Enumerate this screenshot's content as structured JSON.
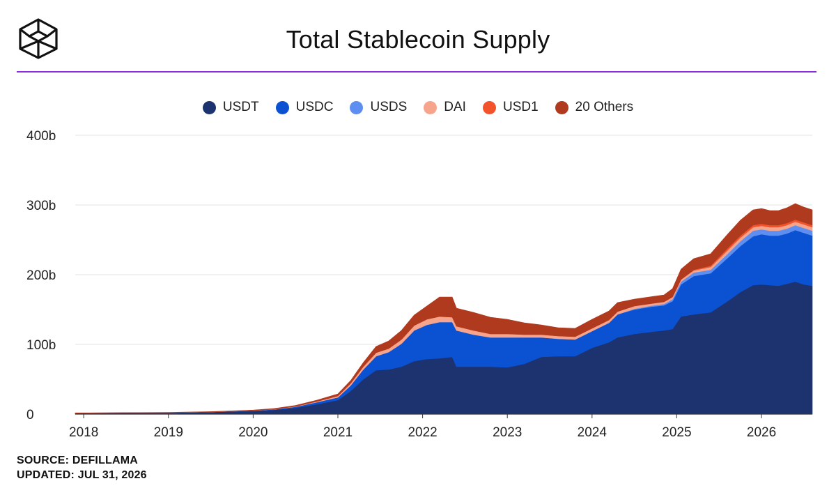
{
  "header": {
    "title": "Total Stablecoin Supply",
    "logo_icon": "cube-logo-icon",
    "rule_color": "#8a2be2"
  },
  "legend": [
    {
      "label": "USDT",
      "color": "#1c3370"
    },
    {
      "label": "USDC",
      "color": "#0b52d3"
    },
    {
      "label": "USDS",
      "color": "#5e8ff0"
    },
    {
      "label": "DAI",
      "color": "#f7a48d"
    },
    {
      "label": "USD1",
      "color": "#f2532b"
    },
    {
      "label": "20 Others",
      "color": "#b03a1e"
    }
  ],
  "footer": {
    "source": "SOURCE: DEFILLAMA",
    "updated": "UPDATED: JUL 31, 2026"
  },
  "chart_data": {
    "type": "area",
    "stacked": true,
    "title": "Total Stablecoin Supply",
    "xlabel": "",
    "ylabel": "",
    "x": [
      2017.9,
      2018.5,
      2019.0,
      2019.5,
      2020.0,
      2020.25,
      2020.5,
      2020.75,
      2021.0,
      2021.15,
      2021.3,
      2021.45,
      2021.6,
      2021.75,
      2021.9,
      2022.05,
      2022.2,
      2022.35,
      2022.4,
      2022.6,
      2022.8,
      2023.0,
      2023.2,
      2023.4,
      2023.6,
      2023.8,
      2024.0,
      2024.2,
      2024.3,
      2024.5,
      2024.7,
      2024.85,
      2024.95,
      2025.05,
      2025.2,
      2025.4,
      2025.6,
      2025.75,
      2025.9,
      2026.0,
      2026.1,
      2026.2,
      2026.3,
      2026.4,
      2026.5,
      2026.6
    ],
    "series": [
      {
        "name": "USDT",
        "color": "#1c3370",
        "values": [
          1.5,
          1.8,
          2.0,
          3.0,
          4.5,
          6,
          9,
          14,
          20,
          33,
          50,
          63,
          64,
          68,
          76,
          79,
          80,
          82,
          68,
          68,
          68,
          67,
          72,
          82,
          83,
          83,
          95,
          103,
          110,
          115,
          118,
          120,
          122,
          140,
          143,
          146,
          162,
          175,
          185,
          186,
          185,
          184,
          187,
          190,
          186,
          184
        ]
      },
      {
        "name": "USDC",
        "color": "#0b52d3",
        "values": [
          0,
          0,
          0,
          0,
          0.4,
          0.8,
          1.5,
          3,
          4,
          8,
          14,
          20,
          25,
          33,
          44,
          49,
          52,
          50,
          52,
          46,
          42,
          43,
          38,
          28,
          25,
          24,
          24,
          28,
          33,
          35,
          36,
          36,
          40,
          46,
          55,
          56,
          62,
          66,
          70,
          72,
          71,
          72,
          72,
          74,
          74,
          72
        ]
      },
      {
        "name": "USDS",
        "color": "#5e8ff0",
        "values": [
          0,
          0,
          0,
          0,
          0,
          0,
          0,
          0,
          0,
          0,
          0,
          0,
          0,
          0,
          0,
          0,
          0,
          0,
          0,
          0,
          0,
          0,
          0,
          0,
          0,
          0,
          0,
          0,
          0,
          1,
          1.5,
          2,
          3,
          4,
          5,
          5,
          6,
          7,
          8,
          7,
          7,
          7,
          7,
          7,
          7,
          7
        ]
      },
      {
        "name": "DAI",
        "color": "#f7a48d",
        "values": [
          0.1,
          0.1,
          0.1,
          0.1,
          0.1,
          0.3,
          0.5,
          1,
          2,
          3,
          4,
          5,
          5,
          6,
          7,
          8,
          8,
          7,
          6,
          6,
          5,
          5,
          4,
          4,
          4,
          4,
          4,
          4,
          4,
          4,
          3,
          3,
          3,
          3,
          3,
          4,
          5,
          5,
          5,
          5,
          5,
          5,
          5,
          5,
          5,
          5
        ]
      },
      {
        "name": "USD1",
        "color": "#f2532b",
        "values": [
          0,
          0,
          0,
          0,
          0,
          0,
          0,
          0,
          0,
          0,
          0,
          0,
          0,
          0,
          0,
          0,
          0,
          0,
          0,
          0,
          0,
          0,
          0,
          0,
          0,
          0,
          0,
          0,
          0,
          0,
          0,
          0,
          0,
          0,
          1,
          2,
          3,
          3,
          3,
          3,
          3,
          3,
          3,
          3,
          3,
          3
        ]
      },
      {
        "name": "20 Others",
        "color": "#b03a1e",
        "values": [
          0.2,
          0.2,
          0.3,
          0.5,
          0.8,
          1,
          1.5,
          2,
          3,
          4,
          6,
          9,
          11,
          13,
          15,
          19,
          28,
          29,
          26,
          26,
          24,
          21,
          17,
          14,
          12,
          12,
          13,
          13,
          13,
          10,
          10,
          10,
          12,
          15,
          16,
          17,
          20,
          22,
          22,
          22,
          21,
          21,
          22,
          23,
          22,
          22
        ]
      }
    ],
    "xlim": [
      2017.9,
      2026.6
    ],
    "ylim": [
      0,
      400
    ],
    "y_ticks": [
      0,
      100,
      200,
      300,
      400
    ],
    "y_tick_labels": [
      "0",
      "100b",
      "200b",
      "300b",
      "400b"
    ],
    "x_ticks": [
      2018,
      2019,
      2020,
      2021,
      2022,
      2023,
      2024,
      2025,
      2026
    ],
    "x_tick_labels": [
      "2018",
      "2019",
      "2020",
      "2021",
      "2022",
      "2023",
      "2024",
      "2025",
      "2026"
    ],
    "grid": true,
    "legend_position": "top-center"
  }
}
